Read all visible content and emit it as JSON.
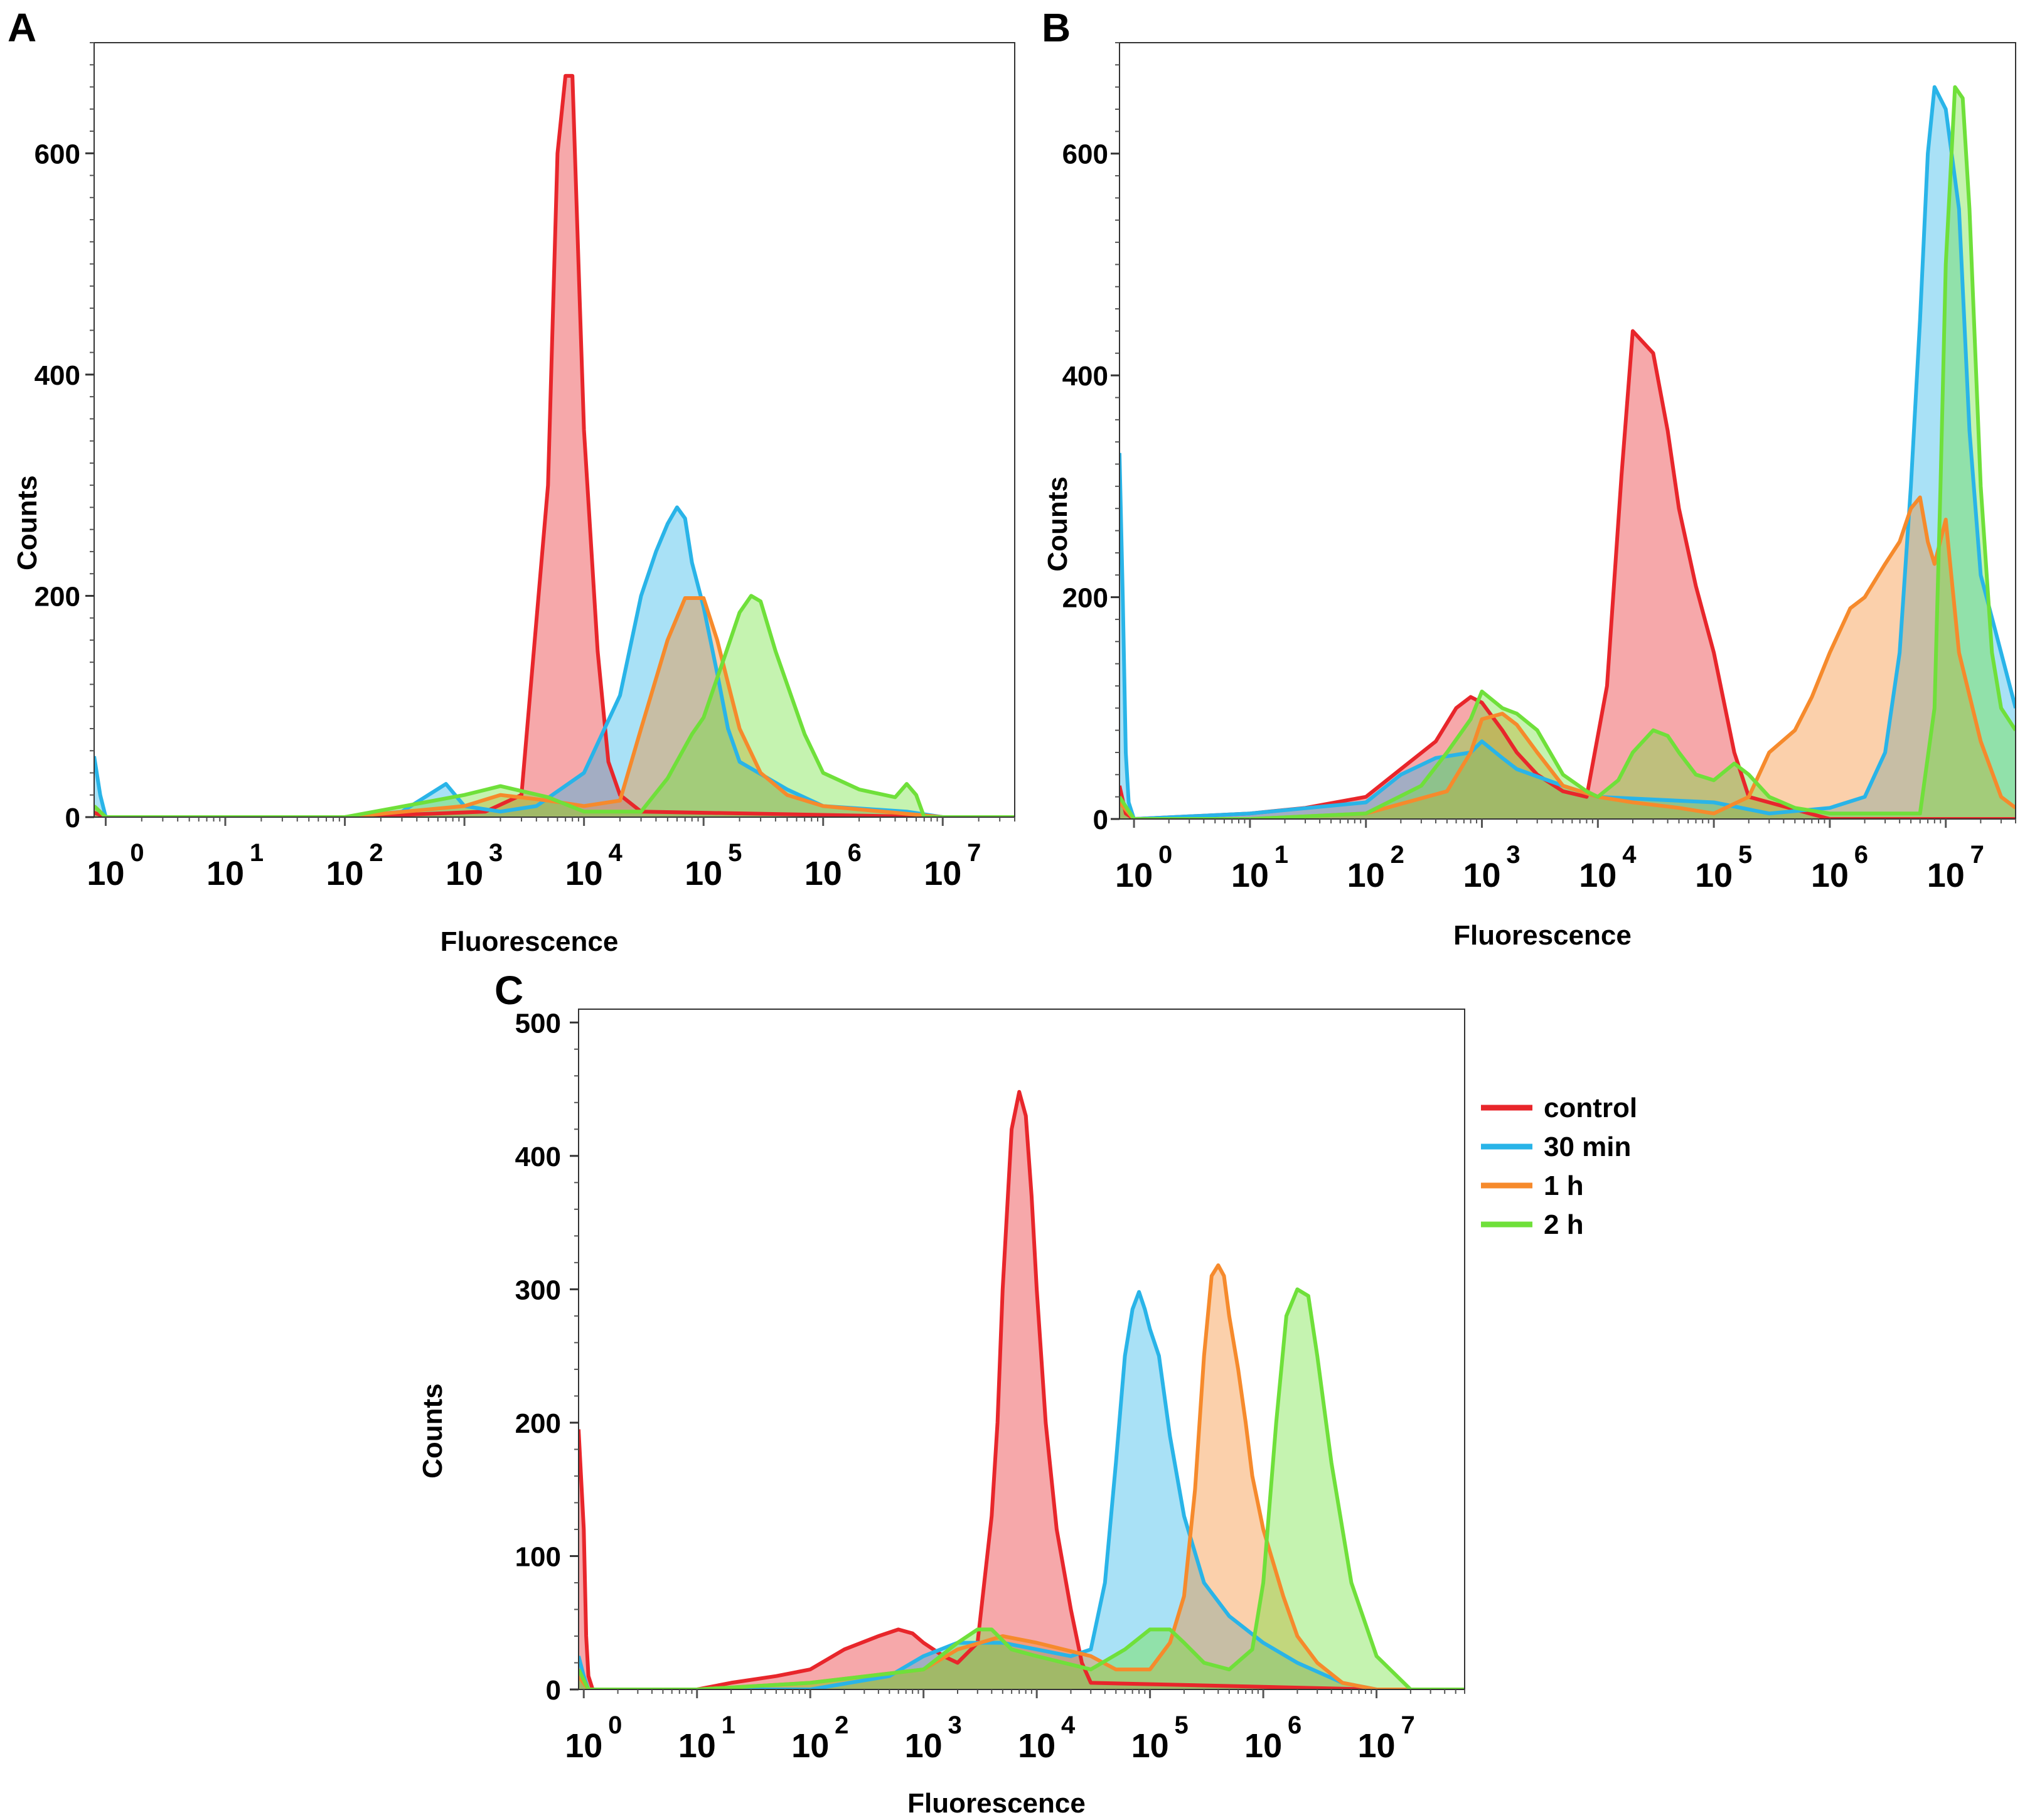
{
  "colors": {
    "control": "#e8262b",
    "30 min": "#29b4e8",
    "1 h": "#f68a2c",
    "2 h": "#6fe03a"
  },
  "legend": {
    "items": [
      "control",
      "30 min",
      "1 h",
      "2 h"
    ]
  },
  "chart_data": [
    {
      "panel": "A",
      "type": "area",
      "xlabel": "Fluorescence",
      "ylabel": "Counts",
      "xscale": "log",
      "xlim": [
        0.8,
        40000000
      ],
      "ylim": [
        0,
        700
      ],
      "yticks": [
        0,
        200,
        400,
        600
      ],
      "xticks": [
        1,
        10,
        100,
        1000,
        10000,
        100000,
        1000000,
        10000000
      ],
      "xtick_base": "10",
      "xtick_exps": [
        "0",
        "1",
        "2",
        "3",
        "4",
        "5",
        "6",
        "7"
      ],
      "grid": false,
      "series": [
        {
          "name": "control",
          "x": [
            0.8,
            1,
            100,
            1500,
            3000,
            5000,
            6000,
            7000,
            8000,
            9000,
            10000,
            13000,
            16000,
            20000,
            30000,
            10000000.0,
            40000000.0
          ],
          "y": [
            4,
            0,
            0,
            5,
            20,
            300,
            600,
            670,
            670,
            500,
            350,
            150,
            50,
            20,
            5,
            0,
            0
          ]
        },
        {
          "name": "30 min",
          "x": [
            0.8,
            0.9,
            1,
            100,
            300,
            500,
            700,
            1000,
            2000,
            4000,
            10000,
            20000,
            30000,
            40000,
            50000,
            60000,
            70000,
            80000,
            100000,
            130000,
            160000,
            200000,
            500000,
            1000000,
            5000000,
            10000000.0,
            40000000.0
          ],
          "y": [
            55,
            20,
            0,
            0,
            5,
            20,
            30,
            10,
            5,
            10,
            40,
            110,
            200,
            240,
            265,
            280,
            270,
            230,
            190,
            130,
            80,
            50,
            25,
            10,
            5,
            0,
            0
          ]
        },
        {
          "name": "1 h",
          "x": [
            0.8,
            1,
            100,
            1000,
            2000,
            5000,
            10000,
            20000,
            30000,
            50000,
            70000,
            100000,
            130000,
            170000,
            200000,
            300000,
            500000,
            1000000,
            10000000.0,
            40000000.0
          ],
          "y": [
            10,
            0,
            0,
            10,
            20,
            15,
            10,
            15,
            80,
            160,
            198,
            198,
            160,
            110,
            80,
            40,
            20,
            10,
            0,
            0
          ]
        },
        {
          "name": "2 h",
          "x": [
            0.8,
            1,
            100,
            1000,
            2000,
            5000,
            10000,
            30000,
            50000,
            80000,
            100000,
            120000,
            150000,
            200000,
            250000,
            300000,
            400000,
            500000,
            700000,
            1000000,
            2000000,
            4000000,
            5000000,
            6000000,
            7000000,
            10000000.0,
            40000000.0
          ],
          "y": [
            10,
            0,
            0,
            20,
            28,
            18,
            5,
            5,
            35,
            75,
            90,
            115,
            145,
            185,
            200,
            195,
            150,
            120,
            75,
            40,
            25,
            18,
            30,
            20,
            0,
            0,
            0
          ]
        }
      ]
    },
    {
      "panel": "B",
      "type": "area",
      "xlabel": "Fluorescence",
      "ylabel": "Counts",
      "xscale": "log",
      "xlim": [
        0.75,
        40000000
      ],
      "ylim": [
        0,
        700
      ],
      "yticks": [
        0,
        200,
        400,
        600
      ],
      "xticks": [
        1,
        10,
        100,
        1000,
        10000,
        100000,
        1000000,
        10000000
      ],
      "xtick_base": "10",
      "xtick_exps": [
        "0",
        "1",
        "2",
        "3",
        "4",
        "5",
        "6",
        "7"
      ],
      "grid": false,
      "series": [
        {
          "name": "control",
          "x": [
            0.75,
            0.85,
            1,
            10,
            30,
            100,
            200,
            400,
            600,
            800,
            1000,
            1500,
            2000,
            3000,
            5000,
            8000,
            12000,
            16000,
            20000,
            30000,
            40000,
            50000,
            70000,
            100000,
            150000,
            200000,
            1000000,
            40000000.0
          ],
          "y": [
            30,
            5,
            0,
            5,
            10,
            20,
            45,
            70,
            100,
            110,
            105,
            80,
            60,
            40,
            25,
            20,
            120,
            310,
            440,
            420,
            350,
            280,
            210,
            150,
            60,
            20,
            0,
            0
          ]
        },
        {
          "name": "30 min",
          "x": [
            0.75,
            0.8,
            0.85,
            0.9,
            1,
            10,
            100,
            200,
            400,
            800,
            1000,
            1500,
            2000,
            5000,
            10000,
            100000,
            300000,
            1000000,
            2000000,
            3000000,
            4000000,
            5000000,
            6000000,
            7000000,
            8000000,
            10000000,
            13000000,
            16000000,
            20000000,
            30000000,
            40000000
          ],
          "y": [
            330,
            200,
            60,
            15,
            0,
            5,
            15,
            40,
            55,
            60,
            70,
            55,
            45,
            30,
            20,
            15,
            5,
            10,
            20,
            60,
            150,
            300,
            450,
            600,
            660,
            640,
            550,
            350,
            220,
            150,
            100
          ]
        },
        {
          "name": "1 h",
          "x": [
            0.75,
            1,
            10,
            100,
            500,
            800,
            1000,
            1500,
            2000,
            3000,
            5000,
            10000,
            20000,
            50000,
            100000,
            200000,
            300000,
            500000,
            700000,
            1000000,
            1500000,
            2000000,
            3000000,
            4000000,
            5000000,
            6000000,
            7000000,
            8000000,
            10000000,
            13000000,
            20000000,
            30000000,
            40000000
          ],
          "y": [
            15,
            0,
            0,
            5,
            25,
            60,
            90,
            95,
            85,
            60,
            30,
            20,
            15,
            10,
            5,
            20,
            60,
            80,
            110,
            150,
            190,
            200,
            230,
            250,
            280,
            290,
            250,
            230,
            270,
            150,
            70,
            20,
            10
          ]
        },
        {
          "name": "2 h",
          "x": [
            0.75,
            1,
            10,
            100,
            300,
            500,
            800,
            1000,
            1500,
            2000,
            3000,
            5000,
            8000,
            10000,
            15000,
            20000,
            30000,
            40000,
            50000,
            70000,
            100000,
            150000,
            200000,
            300000,
            500000,
            1000000,
            3000000,
            6000000,
            8000000,
            9000000,
            10000000,
            12000000,
            14000000,
            16000000,
            20000000,
            25000000,
            30000000,
            40000000
          ],
          "y": [
            20,
            0,
            0,
            5,
            30,
            60,
            90,
            115,
            100,
            95,
            80,
            40,
            25,
            20,
            35,
            60,
            80,
            75,
            60,
            40,
            35,
            50,
            40,
            20,
            10,
            5,
            5,
            5,
            100,
            300,
            500,
            660,
            650,
            550,
            300,
            150,
            100,
            80
          ]
        }
      ]
    },
    {
      "panel": "C",
      "type": "area",
      "xlabel": "Fluorescence",
      "ylabel": "Counts",
      "xscale": "log",
      "xlim": [
        0.9,
        60000000
      ],
      "ylim": [
        0,
        510
      ],
      "yticks": [
        0,
        100,
        200,
        300,
        400,
        500
      ],
      "xticks": [
        1,
        10,
        100,
        1000,
        10000,
        100000,
        1000000,
        10000000
      ],
      "xtick_base": "10",
      "xtick_exps": [
        "0",
        "1",
        "2",
        "3",
        "4",
        "5",
        "6",
        "7"
      ],
      "grid": false,
      "series": [
        {
          "name": "control",
          "x": [
            0.9,
            1,
            1.05,
            1.1,
            1.2,
            1.5,
            10,
            20,
            50,
            100,
            200,
            400,
            600,
            800,
            1000,
            1500,
            2000,
            3000,
            4000,
            4500,
            5000,
            6000,
            7000,
            8000,
            9000,
            10000,
            12000,
            15000,
            20000,
            25000,
            30000,
            10000000.0,
            60000000.0
          ],
          "y": [
            195,
            120,
            40,
            10,
            0,
            0,
            0,
            5,
            10,
            15,
            30,
            40,
            45,
            42,
            35,
            25,
            20,
            35,
            130,
            200,
            300,
            420,
            448,
            430,
            370,
            300,
            200,
            120,
            60,
            20,
            5,
            0,
            0
          ]
        },
        {
          "name": "30 min",
          "x": [
            0.9,
            1,
            1.1,
            1.5,
            10,
            100,
            500,
            1000,
            2000,
            5000,
            10000,
            20000,
            30000,
            40000,
            50000,
            60000,
            70000,
            80000,
            90000,
            100000,
            120000,
            150000,
            200000,
            300000,
            500000,
            1000000,
            2000000,
            5000000,
            10000000.0,
            60000000.0
          ],
          "y": [
            25,
            10,
            0,
            0,
            0,
            0,
            10,
            25,
            35,
            35,
            30,
            25,
            30,
            80,
            170,
            250,
            285,
            298,
            285,
            270,
            250,
            190,
            130,
            80,
            55,
            35,
            20,
            5,
            0,
            0
          ]
        },
        {
          "name": "1 h",
          "x": [
            0.9,
            1.1,
            1.5,
            10,
            100,
            1000,
            2000,
            5000,
            10000,
            30000,
            50000,
            100000,
            150000,
            200000,
            250000,
            300000,
            350000,
            400000,
            450000,
            500000,
            600000,
            700000,
            800000,
            1000000,
            1500000,
            2000000,
            3000000,
            5000000,
            10000000.0,
            60000000.0
          ],
          "y": [
            10,
            0,
            0,
            0,
            5,
            15,
            30,
            40,
            35,
            25,
            15,
            15,
            35,
            70,
            150,
            250,
            310,
            318,
            310,
            280,
            240,
            200,
            160,
            120,
            70,
            40,
            20,
            5,
            0,
            0
          ]
        },
        {
          "name": "2 h",
          "x": [
            0.9,
            1.1,
            1.5,
            10,
            100,
            1000,
            2000,
            3000,
            4000,
            6000,
            10000,
            30000,
            60000,
            100000,
            150000,
            200000,
            300000,
            500000,
            800000,
            1000000,
            1300000,
            1600000,
            2000000,
            2500000,
            3000000,
            4000000,
            6000000,
            10000000.0,
            20000000.0,
            60000000.0
          ],
          "y": [
            15,
            0,
            0,
            0,
            5,
            15,
            35,
            45,
            45,
            30,
            25,
            15,
            30,
            45,
            45,
            35,
            20,
            15,
            30,
            80,
            200,
            280,
            300,
            295,
            250,
            170,
            80,
            25,
            0,
            0
          ]
        }
      ]
    }
  ]
}
